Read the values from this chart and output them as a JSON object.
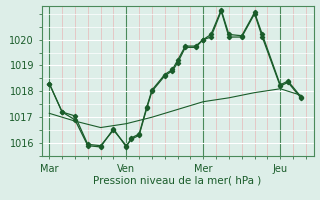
{
  "background_color": "#ddeee8",
  "plot_bg_color": "#ddeee8",
  "grid_color_white": "#ffffff",
  "grid_color_pink": "#e8b8b8",
  "grid_color_dark": "#4a8a5a",
  "line_color": "#1a5c2a",
  "xlabel": "Pression niveau de la mer( hPa )",
  "ylim": [
    1015.5,
    1021.3
  ],
  "yticks": [
    1016,
    1017,
    1018,
    1019,
    1020
  ],
  "xtick_labels": [
    "Mar",
    "Ven",
    "Mer",
    "Jeu"
  ],
  "xtick_positions": [
    0,
    30,
    60,
    90
  ],
  "series1": [
    [
      0,
      1018.3
    ],
    [
      5,
      1017.2
    ],
    [
      10,
      1016.9
    ],
    [
      15,
      1015.9
    ],
    [
      20,
      1015.85
    ],
    [
      25,
      1016.55
    ],
    [
      30,
      1015.85
    ],
    [
      32,
      1016.2
    ],
    [
      35,
      1016.35
    ],
    [
      38,
      1017.4
    ],
    [
      40,
      1018.05
    ],
    [
      45,
      1018.65
    ],
    [
      48,
      1018.85
    ],
    [
      50,
      1019.2
    ],
    [
      53,
      1019.75
    ],
    [
      57,
      1019.75
    ],
    [
      60,
      1020.0
    ],
    [
      63,
      1020.2
    ],
    [
      67,
      1021.15
    ],
    [
      70,
      1020.2
    ],
    [
      75,
      1020.15
    ],
    [
      80,
      1021.05
    ],
    [
      83,
      1020.2
    ],
    [
      90,
      1018.25
    ],
    [
      93,
      1018.4
    ],
    [
      98,
      1017.8
    ]
  ],
  "series2": [
    [
      0,
      1018.3
    ],
    [
      5,
      1017.2
    ],
    [
      10,
      1017.05
    ],
    [
      15,
      1015.95
    ],
    [
      20,
      1015.9
    ],
    [
      25,
      1016.5
    ],
    [
      30,
      1015.9
    ],
    [
      32,
      1016.15
    ],
    [
      35,
      1016.3
    ],
    [
      38,
      1017.35
    ],
    [
      40,
      1018.0
    ],
    [
      45,
      1018.6
    ],
    [
      48,
      1018.8
    ],
    [
      50,
      1019.1
    ],
    [
      53,
      1019.7
    ],
    [
      57,
      1019.7
    ],
    [
      60,
      1020.0
    ],
    [
      63,
      1020.1
    ],
    [
      67,
      1021.1
    ],
    [
      70,
      1020.1
    ],
    [
      75,
      1020.1
    ],
    [
      80,
      1021.0
    ],
    [
      83,
      1020.1
    ],
    [
      90,
      1018.2
    ],
    [
      93,
      1018.35
    ],
    [
      98,
      1017.75
    ]
  ],
  "series3": [
    [
      0,
      1017.15
    ],
    [
      10,
      1016.85
    ],
    [
      20,
      1016.6
    ],
    [
      30,
      1016.75
    ],
    [
      40,
      1017.0
    ],
    [
      50,
      1017.3
    ],
    [
      60,
      1017.6
    ],
    [
      70,
      1017.75
    ],
    [
      80,
      1017.95
    ],
    [
      90,
      1018.1
    ],
    [
      98,
      1017.85
    ]
  ]
}
